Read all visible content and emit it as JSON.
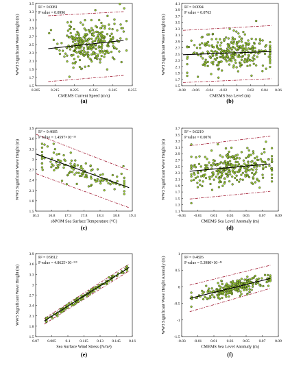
{
  "colors": {
    "point_fill": "#9acd32",
    "point_stroke": "#1a1a1a",
    "fit_line": "#000000",
    "bound_line": "#a01830",
    "frame": "#000000"
  },
  "chart_data": [
    {
      "id": "a",
      "type": "scatter",
      "panel_label": "(a)",
      "xlabel": "CMEMS Current Speed (m/s)",
      "ylabel": "WW3 Significant Wave Height (m)",
      "xlim": [
        0.205,
        0.255
      ],
      "ylim": [
        1.5,
        3.5
      ],
      "xticks": [
        "0.205",
        "0.215",
        "0.225",
        "0.235",
        "0.245",
        "0.255"
      ],
      "yticks": [
        "1.5",
        "1.7",
        "1.9",
        "2.1",
        "2.3",
        "2.5",
        "2.7",
        "2.9",
        "3.1",
        "3.3",
        "3.5"
      ],
      "annotations": [
        "R² = 0.0081",
        "P value = 0.0996"
      ],
      "fit": [
        [
          0.2115,
          2.4
        ],
        [
          0.2505,
          2.6
        ]
      ],
      "upper": [
        [
          0.2115,
          3.2
        ],
        [
          0.2505,
          3.3
        ]
      ],
      "lower": [
        [
          0.2115,
          1.6
        ],
        [
          0.2505,
          1.75
        ]
      ],
      "cloud": {
        "n": 300,
        "x_center": 0.233,
        "x_sd": 0.0075,
        "x_range": [
          0.212,
          0.252
        ],
        "y_sd": 0.26,
        "y_range": [
          1.55,
          3.5
        ],
        "seed": 11
      }
    },
    {
      "id": "b",
      "type": "scatter",
      "panel_label": "(b)",
      "xlabel": "CMEMS Sea Level (m)",
      "ylabel": "WW3 Significant Wave Height (m)",
      "xlim": [
        -0.08,
        0.06
      ],
      "ylim": [
        1.5,
        4.1
      ],
      "xticks": [
        "-0.08",
        "-0.06",
        "-0.04",
        "-0.02",
        "0",
        "0.02",
        "0.04",
        "0.06"
      ],
      "yticks": [
        "1.5",
        "1.7",
        "1.9",
        "2.1",
        "2.3",
        "2.5",
        "2.7",
        "2.9",
        "3.1",
        "3.3",
        "3.5",
        "3.7",
        "3.9",
        "4.1"
      ],
      "annotations": [
        "R² = 0.0094",
        "P value = 0.0763"
      ],
      "fit": [
        [
          -0.078,
          2.48
        ],
        [
          0.05,
          2.58
        ]
      ],
      "upper": [
        [
          -0.078,
          3.25
        ],
        [
          0.05,
          3.4
        ]
      ],
      "lower": [
        [
          -0.078,
          1.6
        ],
        [
          0.05,
          1.72
        ]
      ],
      "cloud": {
        "n": 300,
        "x_center": -0.01,
        "x_sd": 0.03,
        "x_range": [
          -0.072,
          0.048
        ],
        "y_sd": 0.3,
        "y_range": [
          1.55,
          3.6
        ],
        "seed": 23
      }
    },
    {
      "id": "c",
      "type": "scatter",
      "panel_label": "(c)",
      "xlabel": "sbPOM Sea Surface Temperature (°C)",
      "ylabel": "WW3 Significant Wave Height (m)",
      "xlim": [
        16.3,
        19.3
      ],
      "ylim": [
        1.5,
        3.9
      ],
      "xticks": [
        "16.3",
        "16.8",
        "17.3",
        "17.8",
        "18.3",
        "18.8",
        "19.3"
      ],
      "yticks": [
        "1.5",
        "1.8",
        "2.1",
        "2.4",
        "2.7",
        "3",
        "3.3",
        "3.6",
        "3.9"
      ],
      "annotations": [
        "R² = 0.4685",
        "P value = 1.4597×10⁻¹⁵"
      ],
      "fit": [
        [
          16.32,
          3.15
        ],
        [
          19.2,
          2.18
        ]
      ],
      "upper": [
        [
          16.32,
          3.72
        ],
        [
          19.2,
          2.68
        ]
      ],
      "lower": [
        [
          16.32,
          2.58
        ],
        [
          19.2,
          1.6
        ]
      ],
      "cloud": {
        "n": 130,
        "x_center": 17.8,
        "x_sd": 0.8,
        "x_range": [
          16.5,
          19.05
        ],
        "y_sd": 0.2,
        "y_range": [
          1.9,
          3.45
        ],
        "seed": 37
      }
    },
    {
      "id": "d",
      "type": "scatter",
      "panel_label": "(d)",
      "xlabel": "CMEMS Sea Level Anomaly (m)",
      "ylabel": "WW3 Significant Wave Height (m)",
      "xlim": [
        -0.03,
        0.09
      ],
      "ylim": [
        1.1,
        3.7
      ],
      "xticks": [
        "-0.03",
        "-0.01",
        "0.01",
        "0.03",
        "0.05",
        "0.07",
        "0.09"
      ],
      "yticks": [
        "1.1",
        "1.3",
        "1.5",
        "1.7",
        "1.9",
        "2.1",
        "2.3",
        "2.5",
        "2.7",
        "2.9",
        "3.1",
        "3.3",
        "3.5",
        "3.7"
      ],
      "annotations": [
        "R² = 0.0219",
        "P value = 0.0076"
      ],
      "fit": [
        [
          -0.02,
          2.35
        ],
        [
          0.08,
          2.58
        ]
      ],
      "upper": [
        [
          -0.02,
          3.15
        ],
        [
          0.08,
          3.45
        ]
      ],
      "lower": [
        [
          -0.02,
          1.48
        ],
        [
          0.08,
          1.72
        ]
      ],
      "cloud": {
        "n": 300,
        "x_center": 0.032,
        "x_sd": 0.027,
        "x_range": [
          -0.018,
          0.082
        ],
        "y_sd": 0.3,
        "y_range": [
          1.2,
          3.6
        ],
        "seed": 41
      }
    },
    {
      "id": "e",
      "type": "scatter",
      "panel_label": "(e)",
      "xlabel": "Sea Surface Wind Stress (N/m²)",
      "ylabel": "WW3 Significant Wave Height (m)",
      "xlim": [
        0.07,
        0.16
      ],
      "ylim": [
        1.5,
        3.9
      ],
      "xticks": [
        "0.07",
        "0.085",
        "0.1",
        "0.115",
        "0.13",
        "0.145",
        "0.16"
      ],
      "yticks": [
        "1.5",
        "1.8",
        "2.1",
        "2.4",
        "2.7",
        "3",
        "3.3",
        "3.6",
        "3.9"
      ],
      "annotations": [
        "R² = 0.9812",
        "P value = 4.8625×10⁻¹¹³"
      ],
      "fit": [
        [
          0.078,
          1.95
        ],
        [
          0.157,
          3.5
        ]
      ],
      "upper": [
        [
          0.078,
          2.02
        ],
        [
          0.157,
          3.6
        ]
      ],
      "lower": [
        [
          0.078,
          1.86
        ],
        [
          0.157,
          3.4
        ]
      ],
      "cloud": {
        "n": 140,
        "x_center": 0.113,
        "x_sd": 0.025,
        "x_range": [
          0.08,
          0.155
        ],
        "y_sd": 0.035,
        "y_range": [
          1.8,
          3.6
        ],
        "seed": 53
      }
    },
    {
      "id": "f",
      "type": "scatter",
      "panel_label": "(f)",
      "xlabel": "CMEMS Sea Level Anomaly (m)",
      "ylabel": "WW3 Significant Wave Height Anomaly (m)",
      "xlim": [
        -0.03,
        0.09
      ],
      "ylim": [
        -1.5,
        1.0
      ],
      "xticks": [
        "-0.03",
        "-0.01",
        "0.01",
        "0.03",
        "0.05",
        "0.07",
        "0.09"
      ],
      "yticks": [
        "-1.5",
        "-1",
        "-0.5",
        "0",
        "0.5",
        "1"
      ],
      "annotations": [
        "R² = 0.4826",
        "P value = 5.3980×10⁻⁴⁶"
      ],
      "fit": [
        [
          -0.02,
          -0.35
        ],
        [
          0.08,
          0.25
        ]
      ],
      "upper": [
        [
          -0.02,
          0.05
        ],
        [
          0.08,
          0.65
        ]
      ],
      "lower": [
        [
          -0.02,
          -0.75
        ],
        [
          0.08,
          -0.05
        ]
      ],
      "cloud": {
        "n": 260,
        "x_center": 0.035,
        "x_sd": 0.024,
        "x_range": [
          -0.018,
          0.08
        ],
        "y_sd": 0.11,
        "y_range": [
          -1.3,
          0.5
        ],
        "seed": 67
      }
    }
  ]
}
